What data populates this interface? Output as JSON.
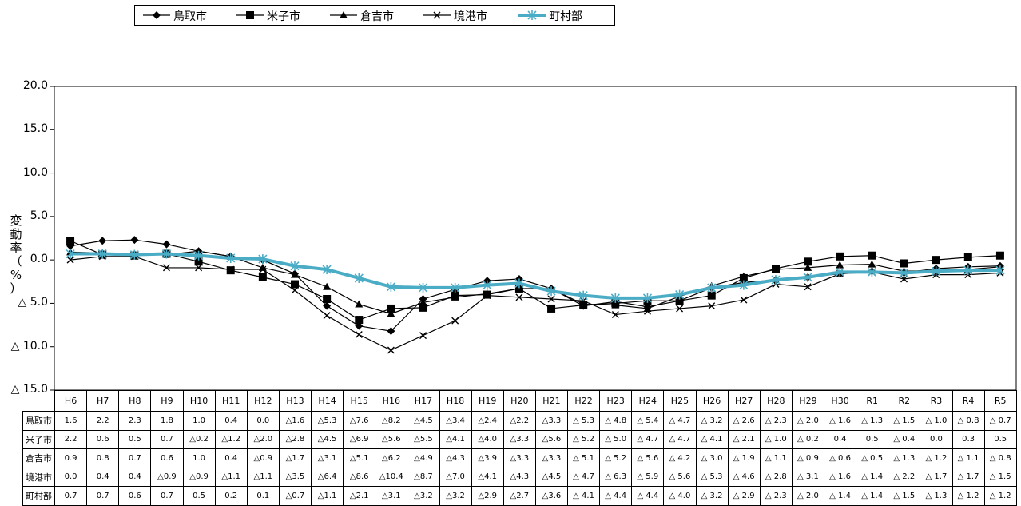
{
  "chart_data": {
    "type": "line",
    "ylabel": "変動率（%）",
    "ylim": [
      -15,
      20
    ],
    "ytick_values": [
      20,
      15,
      10,
      5,
      0,
      -5,
      -10,
      -15
    ],
    "ytick_labels": [
      "20.0",
      "15.0",
      "10.0",
      "5.0",
      "0.0",
      "△ 5.0",
      "△ 10.0",
      "△ 15.0"
    ],
    "categories": [
      "H6",
      "H7",
      "H8",
      "H9",
      "H10",
      "H11",
      "H12",
      "H13",
      "H14",
      "H15",
      "H16",
      "H17",
      "H18",
      "H19",
      "H20",
      "H21",
      "H22",
      "H23",
      "H24",
      "H25",
      "H26",
      "H27",
      "H28",
      "H29",
      "H30",
      "R1",
      "R2",
      "R3",
      "R4",
      "R5"
    ],
    "legend_position": "top-left",
    "series": [
      {
        "name": "鳥取市",
        "marker": "diamond",
        "color": "#000000",
        "values": [
          1.6,
          2.2,
          2.3,
          1.8,
          1.0,
          0.4,
          0.0,
          -1.6,
          -5.3,
          -7.6,
          -8.2,
          -4.5,
          -3.4,
          -2.4,
          -2.2,
          -3.3,
          -5.3,
          -4.8,
          -5.4,
          -4.7,
          -3.2,
          -2.6,
          -2.3,
          -2.0,
          -1.6,
          -1.3,
          -1.5,
          -1.0,
          -0.8,
          -0.7
        ],
        "labels": [
          "1.6",
          "2.2",
          "2.3",
          "1.8",
          "1.0",
          "0.4",
          "0.0",
          "△1.6",
          "△5.3",
          "△7.6",
          "△8.2",
          "△4.5",
          "△3.4",
          "△2.4",
          "△2.2",
          "△3.3",
          "△ 5.3",
          "△ 4.8",
          "△ 5.4",
          "△ 4.7",
          "△ 3.2",
          "△ 2.6",
          "△ 2.3",
          "△ 2.0",
          "△ 1.6",
          "△ 1.3",
          "△ 1.5",
          "△ 1.0",
          "△ 0.8",
          "△ 0.7"
        ]
      },
      {
        "name": "米子市",
        "marker": "square",
        "color": "#000000",
        "values": [
          2.2,
          0.6,
          0.5,
          0.7,
          -0.2,
          -1.2,
          -2.0,
          -2.8,
          -4.5,
          -6.9,
          -5.6,
          -5.5,
          -4.1,
          -4.0,
          -3.3,
          -5.6,
          -5.2,
          -5.0,
          -4.7,
          -4.7,
          -4.1,
          -2.1,
          -1.0,
          -0.2,
          0.4,
          0.5,
          -0.4,
          0.0,
          0.3,
          0.5
        ],
        "labels": [
          "2.2",
          "0.6",
          "0.5",
          "0.7",
          "△0.2",
          "△1.2",
          "△2.0",
          "△2.8",
          "△4.5",
          "△6.9",
          "△5.6",
          "△5.5",
          "△4.1",
          "△4.0",
          "△3.3",
          "△5.6",
          "△ 5.2",
          "△ 5.0",
          "△ 4.7",
          "△ 4.7",
          "△ 4.1",
          "△ 2.1",
          "△ 1.0",
          "△ 0.2",
          "0.4",
          "0.5",
          "△ 0.4",
          "0.0",
          "0.3",
          "0.5"
        ]
      },
      {
        "name": "倉吉市",
        "marker": "triangle",
        "color": "#000000",
        "values": [
          0.9,
          0.8,
          0.7,
          0.6,
          1.0,
          0.4,
          -0.9,
          -1.7,
          -3.1,
          -5.1,
          -6.2,
          -4.9,
          -4.3,
          -3.9,
          -3.3,
          -3.3,
          -5.1,
          -5.2,
          -5.6,
          -4.2,
          -3.0,
          -1.9,
          -1.1,
          -0.9,
          -0.6,
          -0.5,
          -1.3,
          -1.2,
          -1.1,
          -0.8
        ],
        "labels": [
          "0.9",
          "0.8",
          "0.7",
          "0.6",
          "1.0",
          "0.4",
          "△0.9",
          "△1.7",
          "△3.1",
          "△5.1",
          "△6.2",
          "△4.9",
          "△4.3",
          "△3.9",
          "△3.3",
          "△3.3",
          "△ 5.1",
          "△ 5.2",
          "△ 5.6",
          "△ 4.2",
          "△ 3.0",
          "△ 1.9",
          "△ 1.1",
          "△ 0.9",
          "△ 0.6",
          "△ 0.5",
          "△ 1.3",
          "△ 1.2",
          "△ 1.1",
          "△ 0.8"
        ]
      },
      {
        "name": "境港市",
        "marker": "x",
        "color": "#000000",
        "values": [
          0.0,
          0.4,
          0.4,
          -0.9,
          -0.9,
          -1.1,
          -1.1,
          -3.5,
          -6.4,
          -8.6,
          -10.4,
          -8.7,
          -7.0,
          -4.1,
          -4.3,
          -4.5,
          -4.7,
          -6.3,
          -5.9,
          -5.6,
          -5.3,
          -4.6,
          -2.8,
          -3.1,
          -1.6,
          -1.4,
          -2.2,
          -1.7,
          -1.7,
          -1.5
        ],
        "labels": [
          "0.0",
          "0.4",
          "0.4",
          "△0.9",
          "△0.9",
          "△1.1",
          "△1.1",
          "△3.5",
          "△6.4",
          "△8.6",
          "△10.4",
          "△8.7",
          "△7.0",
          "△4.1",
          "△4.3",
          "△4.5",
          "△ 4.7",
          "△ 6.3",
          "△ 5.9",
          "△ 5.6",
          "△ 5.3",
          "△ 4.6",
          "△ 2.8",
          "△ 3.1",
          "△ 1.6",
          "△ 1.4",
          "△ 2.2",
          "△ 1.7",
          "△ 1.7",
          "△ 1.5"
        ]
      },
      {
        "name": "町村部",
        "marker": "asterisk",
        "color": "#4bacc6",
        "values": [
          0.7,
          0.7,
          0.6,
          0.7,
          0.5,
          0.2,
          0.1,
          -0.7,
          -1.1,
          -2.1,
          -3.1,
          -3.2,
          -3.2,
          -2.9,
          -2.7,
          -3.6,
          -4.1,
          -4.4,
          -4.4,
          -4.0,
          -3.2,
          -2.9,
          -2.3,
          -2.0,
          -1.4,
          -1.4,
          -1.5,
          -1.3,
          -1.2,
          -1.2
        ],
        "labels": [
          "0.7",
          "0.7",
          "0.6",
          "0.7",
          "0.5",
          "0.2",
          "0.1",
          "△0.7",
          "△1.1",
          "△2.1",
          "△3.1",
          "△3.2",
          "△3.2",
          "△2.9",
          "△2.7",
          "△3.6",
          "△ 4.1",
          "△ 4.4",
          "△ 4.4",
          "△ 4.0",
          "△ 3.2",
          "△ 2.9",
          "△ 2.3",
          "△ 2.0",
          "△ 1.4",
          "△ 1.4",
          "△ 1.5",
          "△ 1.3",
          "△ 1.2",
          "△ 1.2"
        ]
      }
    ]
  }
}
